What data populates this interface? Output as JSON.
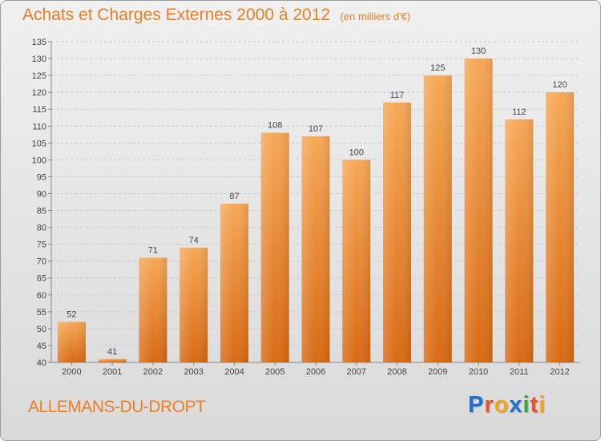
{
  "header": {
    "title": "Achats et Charges Externes 2000 à 2012",
    "unit": "(en milliers d'€)"
  },
  "footer": {
    "commune": "ALLEMANS-DU-DROPT",
    "brand": {
      "letters": [
        "P",
        "r",
        "o",
        "x",
        "i",
        "t",
        "i"
      ],
      "colors": [
        "#1f6fcf",
        "#e8522a",
        "#f2a41c",
        "#1f6fcf",
        "#3aa53a",
        "#e8522a",
        "#f2a41c"
      ]
    }
  },
  "colors": {
    "accent": "#ec7e22",
    "bar_top": "#f6a857",
    "bar_bottom": "#d86a14",
    "grid": "#c8c8c8"
  },
  "chart_data": {
    "type": "bar",
    "categories": [
      "2000",
      "2001",
      "2002",
      "2003",
      "2004",
      "2005",
      "2006",
      "2007",
      "2008",
      "2009",
      "2010",
      "2011",
      "2012"
    ],
    "values": [
      52,
      41,
      71,
      74,
      87,
      108,
      107,
      100,
      117,
      125,
      130,
      112,
      120
    ],
    "title": "Achats et Charges Externes 2000 à 2012",
    "ylim": [
      40,
      135
    ],
    "yticks": [
      40,
      45,
      50,
      55,
      60,
      65,
      70,
      75,
      80,
      85,
      90,
      95,
      100,
      105,
      110,
      115,
      120,
      125,
      130,
      135
    ],
    "grid": true,
    "value_labels": true
  }
}
